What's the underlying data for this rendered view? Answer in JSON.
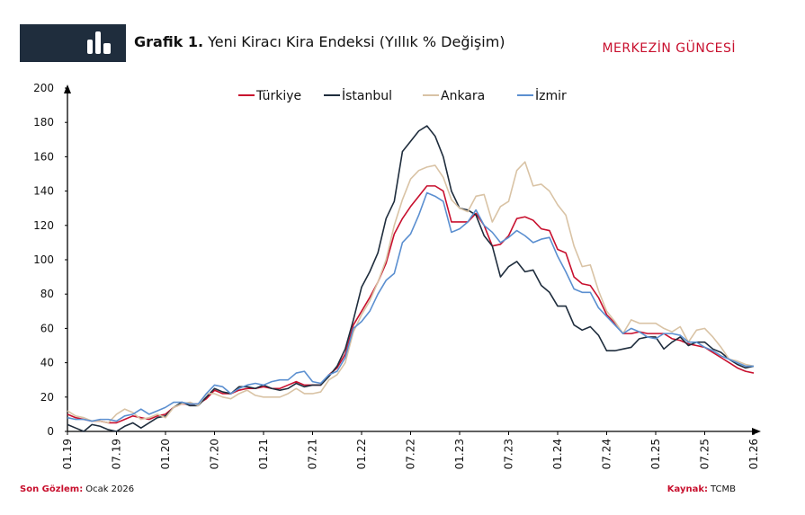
{
  "chart_data": {
    "type": "line",
    "title_label": "Grafik 1.",
    "title": "Yeni Kiracı Kira Endeksi (Yıllık % Değişim)",
    "brand": "MERKEZİN GÜNCESİ",
    "footer_left_label": "Son Gözlem:",
    "footer_left_value": "Ocak 2026",
    "footer_right_label": "Kaynak:",
    "footer_right_value": "TCMB",
    "categories": [
      "01.19",
      null,
      null,
      null,
      null,
      null,
      "07.19",
      null,
      null,
      null,
      null,
      null,
      "01.20",
      null,
      null,
      null,
      null,
      null,
      "07.20",
      null,
      null,
      null,
      null,
      null,
      "01.21",
      null,
      null,
      null,
      null,
      null,
      "07.21",
      null,
      null,
      null,
      null,
      null,
      "01.22",
      null,
      null,
      null,
      null,
      null,
      "07.22",
      null,
      null,
      null,
      null,
      null,
      "01.23",
      null,
      null,
      null,
      null,
      null,
      "07.23",
      null,
      null,
      null,
      null,
      null,
      "01.24",
      null,
      null,
      null,
      null,
      null,
      "07.24",
      null,
      null,
      null,
      null,
      null,
      "01.25",
      null,
      null,
      null,
      null,
      null,
      "07.25",
      null,
      null,
      null,
      null,
      null,
      "01.26"
    ],
    "series": [
      {
        "name": "Türkiye",
        "color": "#c8102e",
        "values": [
          10,
          8,
          7,
          6,
          6,
          5,
          5,
          7,
          9,
          8,
          7,
          9,
          10,
          14,
          16,
          16,
          16,
          19,
          24,
          22,
          22,
          24,
          25,
          25,
          26,
          25,
          25,
          27,
          29,
          27,
          27,
          27,
          33,
          37,
          45,
          62,
          70,
          78,
          87,
          98,
          115,
          124,
          131,
          137,
          143,
          143,
          140,
          122,
          122,
          122,
          127,
          120,
          108,
          109,
          114,
          124,
          125,
          123,
          118,
          117,
          106,
          104,
          90,
          86,
          85,
          78,
          68,
          63,
          57,
          57,
          58,
          57,
          57,
          57,
          54,
          53,
          51,
          50,
          49,
          46,
          43,
          40,
          37,
          35,
          34
        ]
      },
      {
        "name": "İstanbul",
        "color": "#1f2d3d",
        "values": [
          4,
          2,
          0,
          4,
          3,
          1,
          0,
          3,
          5,
          2,
          5,
          8,
          9,
          14,
          17,
          15,
          15,
          20,
          25,
          23,
          22,
          26,
          26,
          25,
          27,
          25,
          24,
          25,
          28,
          26,
          27,
          27,
          32,
          38,
          48,
          65,
          84,
          93,
          104,
          124,
          134,
          163,
          169,
          175,
          178,
          172,
          160,
          140,
          130,
          129,
          126,
          114,
          108,
          90,
          96,
          99,
          93,
          94,
          85,
          81,
          73,
          73,
          62,
          59,
          61,
          56,
          47,
          47,
          48,
          49,
          54,
          55,
          55,
          48,
          52,
          55,
          50,
          52,
          52,
          48,
          46,
          42,
          39,
          37,
          38
        ]
      },
      {
        "name": "Ankara",
        "color": "#d9c3a5",
        "values": [
          12,
          9,
          8,
          6,
          6,
          5,
          10,
          13,
          11,
          7,
          8,
          10,
          8,
          14,
          16,
          17,
          15,
          22,
          22,
          20,
          19,
          22,
          24,
          21,
          20,
          20,
          20,
          22,
          25,
          22,
          22,
          23,
          30,
          33,
          40,
          58,
          68,
          76,
          87,
          100,
          120,
          135,
          147,
          152,
          154,
          155,
          148,
          135,
          130,
          128,
          137,
          138,
          122,
          131,
          134,
          152,
          157,
          143,
          144,
          140,
          132,
          126,
          108,
          96,
          97,
          82,
          70,
          64,
          57,
          65,
          63,
          63,
          63,
          60,
          58,
          61,
          52,
          59,
          60,
          55,
          49,
          42,
          41,
          39,
          38
        ]
      },
      {
        "name": "İzmir",
        "color": "#5b8fd0",
        "values": [
          8,
          7,
          7,
          6,
          7,
          7,
          6,
          9,
          10,
          13,
          10,
          12,
          14,
          17,
          17,
          16,
          16,
          22,
          27,
          26,
          22,
          25,
          27,
          28,
          27,
          29,
          30,
          30,
          34,
          35,
          29,
          28,
          33,
          35,
          43,
          60,
          64,
          70,
          80,
          88,
          92,
          110,
          115,
          126,
          139,
          137,
          134,
          116,
          118,
          122,
          129,
          120,
          116,
          110,
          113,
          117,
          114,
          110,
          112,
          113,
          102,
          93,
          83,
          81,
          81,
          72,
          67,
          62,
          57,
          60,
          58,
          55,
          54,
          57,
          57,
          56,
          52,
          52,
          49,
          47,
          44,
          42,
          40,
          38,
          38
        ]
      }
    ],
    "ylim": [
      0,
      200
    ],
    "yticks": [
      0,
      20,
      40,
      60,
      80,
      100,
      120,
      140,
      160,
      180,
      200
    ],
    "legend": "top"
  }
}
